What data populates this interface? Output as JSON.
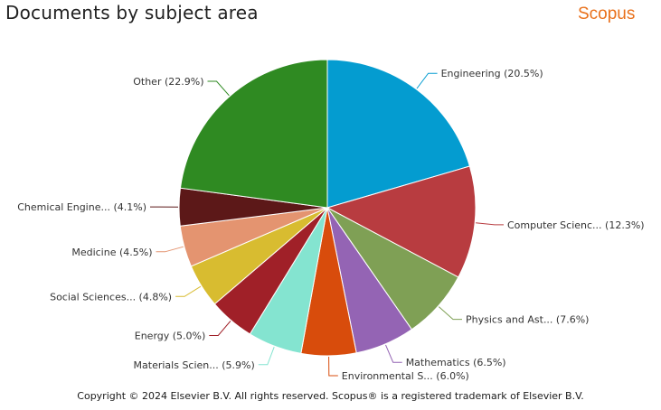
{
  "header": {
    "title": "Documents by subject area",
    "brand": "Scopus"
  },
  "footer": {
    "copyright": "Copyright © 2024 Elsevier B.V. All rights reserved. Scopus® is a registered trademark of Elsevier B.V."
  },
  "chart_data": {
    "type": "pie",
    "title": "Documents by subject area",
    "slices": [
      {
        "label": "Engineering (20.5%)",
        "value": 20.5,
        "color": "#049cd0"
      },
      {
        "label": "Computer Scienc... (12.3%)",
        "value": 12.3,
        "color": "#b83c40"
      },
      {
        "label": "Physics and Ast... (7.6%)",
        "value": 7.6,
        "color": "#7fa055"
      },
      {
        "label": "Mathematics (6.5%)",
        "value": 6.5,
        "color": "#9464b4"
      },
      {
        "label": "Environmental S... (6.0%)",
        "value": 6.0,
        "color": "#d84c0c"
      },
      {
        "label": "Materials Scien... (5.9%)",
        "value": 5.9,
        "color": "#84e4d0"
      },
      {
        "label": "Energy (5.0%)",
        "value": 5.0,
        "color": "#a02028"
      },
      {
        "label": "Social Sciences... (4.8%)",
        "value": 4.8,
        "color": "#d8bc30"
      },
      {
        "label": "Medicine (4.5%)",
        "value": 4.5,
        "color": "#e49470"
      },
      {
        "label": "Chemical Engine... (4.1%)",
        "value": 4.1,
        "color": "#5c1818"
      },
      {
        "label": "Other (22.9%)",
        "value": 22.9,
        "color": "#2f8a22"
      }
    ]
  }
}
